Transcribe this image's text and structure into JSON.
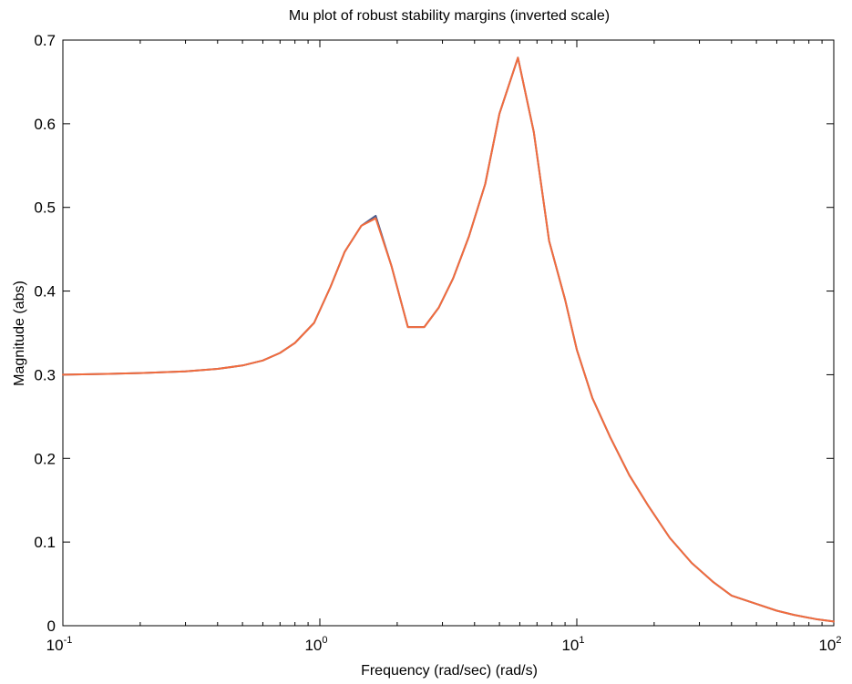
{
  "chart_data": {
    "type": "line",
    "title": "Mu plot of robust stability margins (inverted scale)",
    "xlabel": "Frequency (rad/sec)  (rad/s)",
    "ylabel": "Magnitude (abs)",
    "xscale": "log",
    "xlim": [
      0.1,
      100
    ],
    "ylim": [
      0,
      0.7
    ],
    "grid": false,
    "legend": "none",
    "xticks": [
      {
        "value": 0.1,
        "base": "10",
        "exp": "-1"
      },
      {
        "value": 1,
        "base": "10",
        "exp": "0"
      },
      {
        "value": 10,
        "base": "10",
        "exp": "1"
      },
      {
        "value": 100,
        "base": "10",
        "exp": "2"
      }
    ],
    "yticks": [
      "0",
      "0.1",
      "0.2",
      "0.3",
      "0.4",
      "0.5",
      "0.6",
      "0.7"
    ],
    "series": [
      {
        "color": "#4a5a8c",
        "x": [
          0.1,
          0.15,
          0.2,
          0.3,
          0.4,
          0.5,
          0.6,
          0.7,
          0.8,
          0.95,
          1.1,
          1.25,
          1.45,
          1.65,
          1.9,
          2.2,
          2.55,
          2.9,
          3.3,
          3.8,
          4.4,
          5.0,
          5.9,
          6.8,
          7.8,
          9.0,
          10.0,
          11.5,
          13.5,
          16,
          19,
          23,
          28,
          34,
          40,
          50,
          60,
          70,
          85,
          100
        ],
        "y": [
          0.3,
          0.301,
          0.302,
          0.304,
          0.307,
          0.311,
          0.317,
          0.326,
          0.338,
          0.362,
          0.405,
          0.447,
          0.478,
          0.49,
          0.43,
          0.357,
          0.357,
          0.38,
          0.415,
          0.465,
          0.528,
          0.612,
          0.679,
          0.59,
          0.46,
          0.39,
          0.33,
          0.272,
          0.225,
          0.18,
          0.143,
          0.105,
          0.075,
          0.052,
          0.036,
          0.026,
          0.018,
          0.013,
          0.008,
          0.005
        ]
      },
      {
        "color": "#f26c3d",
        "x": [
          0.1,
          0.15,
          0.2,
          0.3,
          0.4,
          0.5,
          0.6,
          0.7,
          0.8,
          0.95,
          1.1,
          1.25,
          1.45,
          1.65,
          1.9,
          2.2,
          2.55,
          2.9,
          3.3,
          3.8,
          4.4,
          5.0,
          5.9,
          6.8,
          7.8,
          9.0,
          10.0,
          11.5,
          13.5,
          16,
          19,
          23,
          28,
          34,
          40,
          50,
          60,
          70,
          85,
          100
        ],
        "y": [
          0.3,
          0.301,
          0.302,
          0.304,
          0.307,
          0.311,
          0.317,
          0.326,
          0.338,
          0.362,
          0.405,
          0.447,
          0.478,
          0.487,
          0.43,
          0.357,
          0.357,
          0.38,
          0.415,
          0.465,
          0.528,
          0.612,
          0.679,
          0.59,
          0.46,
          0.39,
          0.33,
          0.272,
          0.225,
          0.18,
          0.143,
          0.105,
          0.075,
          0.052,
          0.036,
          0.026,
          0.018,
          0.013,
          0.008,
          0.005
        ]
      }
    ]
  }
}
